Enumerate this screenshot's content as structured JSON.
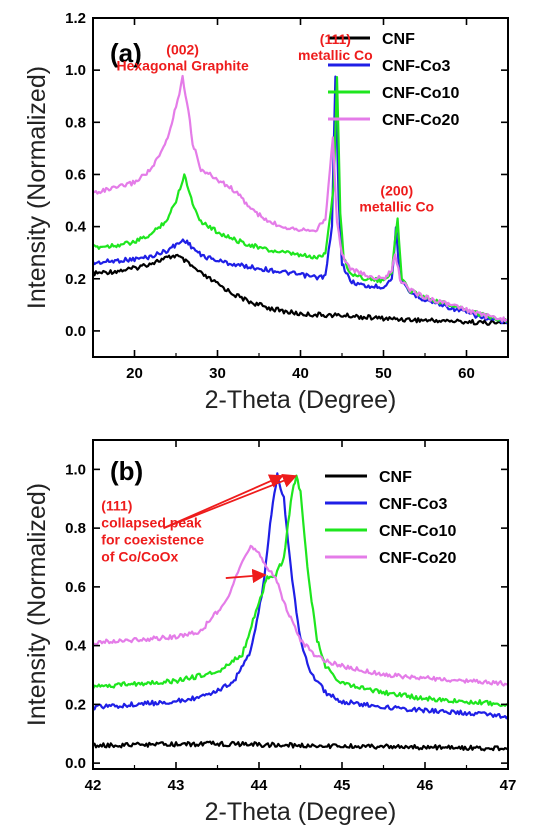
{
  "chart_data": [
    {
      "type": "line",
      "panel_label": "(a)",
      "xlabel": "2-Theta (Degree)",
      "ylabel": "Intensity (Normalized)",
      "xlim": [
        15,
        65
      ],
      "ylim": [
        -0.1,
        1.2
      ],
      "xticks": [
        20,
        30,
        40,
        50,
        60
      ],
      "yticks": [
        0.0,
        0.2,
        0.4,
        0.6,
        0.8,
        1.0,
        1.2
      ],
      "grid": false,
      "legend_position": "top-right",
      "legend": [
        "CNF",
        "CNF-Co3",
        "CNF-Co10",
        "CNF-Co20"
      ],
      "annotations": [
        {
          "lines": [
            "(002)",
            "Hexagonal Graphite"
          ],
          "x": 25.8,
          "y": 1.06
        },
        {
          "lines": [
            "(111)",
            "metallic Co"
          ],
          "x": 44.2,
          "y": 1.1
        },
        {
          "lines": [
            "(200)",
            "metallic Co"
          ],
          "x": 51.6,
          "y": 0.52
        }
      ],
      "series": [
        {
          "name": "CNF",
          "color": "#000000",
          "x": [
            15,
            18,
            20,
            22,
            24,
            25,
            26,
            28,
            30,
            32,
            34,
            36,
            38,
            40,
            42,
            44,
            46,
            48,
            50,
            52,
            54,
            56,
            58,
            60,
            62,
            65
          ],
          "y": [
            0.22,
            0.23,
            0.24,
            0.26,
            0.28,
            0.29,
            0.27,
            0.22,
            0.18,
            0.14,
            0.11,
            0.09,
            0.075,
            0.065,
            0.062,
            0.06,
            0.058,
            0.052,
            0.048,
            0.045,
            0.042,
            0.04,
            0.038,
            0.035,
            0.032,
            0.03
          ]
        },
        {
          "name": "CNF-Co3",
          "color": "#1f1fe6",
          "x": [
            15,
            18,
            20,
            22,
            24,
            25,
            26,
            27,
            28,
            30,
            32,
            34,
            36,
            38,
            40,
            42,
            43,
            43.8,
            44.2,
            44.6,
            45,
            46,
            48,
            50,
            51,
            51.5,
            52,
            53,
            55,
            58,
            60,
            62,
            65
          ],
          "y": [
            0.26,
            0.27,
            0.275,
            0.285,
            0.31,
            0.33,
            0.35,
            0.32,
            0.29,
            0.27,
            0.255,
            0.245,
            0.235,
            0.225,
            0.215,
            0.205,
            0.21,
            0.4,
            0.98,
            0.5,
            0.26,
            0.19,
            0.17,
            0.17,
            0.2,
            0.39,
            0.2,
            0.15,
            0.12,
            0.09,
            0.07,
            0.05,
            0.03
          ]
        },
        {
          "name": "CNF-Co10",
          "color": "#1ee61e",
          "x": [
            15,
            18,
            20,
            22,
            24,
            25,
            26,
            27,
            28,
            30,
            32,
            34,
            36,
            38,
            40,
            42,
            43,
            44,
            44.4,
            44.8,
            45.2,
            46,
            48,
            50,
            51,
            51.7,
            52.2,
            53,
            55,
            58,
            60,
            62,
            65
          ],
          "y": [
            0.32,
            0.33,
            0.34,
            0.37,
            0.43,
            0.5,
            0.6,
            0.49,
            0.42,
            0.38,
            0.35,
            0.33,
            0.31,
            0.3,
            0.29,
            0.28,
            0.3,
            0.55,
            0.98,
            0.45,
            0.28,
            0.22,
            0.2,
            0.19,
            0.23,
            0.43,
            0.2,
            0.16,
            0.13,
            0.1,
            0.08,
            0.06,
            0.04
          ]
        },
        {
          "name": "CNF-Co20",
          "color": "#e47ce8",
          "x": [
            15,
            18,
            20,
            22,
            23,
            24,
            25,
            25.8,
            26.5,
            27,
            28,
            30,
            32,
            34,
            36,
            38,
            40,
            42,
            43,
            43.9,
            44.4,
            45,
            46,
            48,
            50,
            51,
            51.4,
            52,
            53,
            55,
            58,
            60,
            62,
            65
          ],
          "y": [
            0.53,
            0.55,
            0.57,
            0.62,
            0.67,
            0.74,
            0.86,
            0.97,
            0.85,
            0.72,
            0.62,
            0.58,
            0.54,
            0.47,
            0.42,
            0.4,
            0.39,
            0.39,
            0.43,
            0.74,
            0.42,
            0.29,
            0.24,
            0.21,
            0.2,
            0.23,
            0.3,
            0.2,
            0.16,
            0.13,
            0.1,
            0.08,
            0.06,
            0.04
          ]
        }
      ]
    },
    {
      "type": "line",
      "panel_label": "(b)",
      "xlabel": "2-Theta (Degree)",
      "ylabel": "Intensity (Normalized)",
      "xlim": [
        42,
        47
      ],
      "ylim": [
        -0.02,
        1.1
      ],
      "xticks": [
        42,
        43,
        44,
        45,
        46,
        47
      ],
      "yticks": [
        0.0,
        0.2,
        0.4,
        0.6,
        0.8,
        1.0
      ],
      "grid": false,
      "legend_position": "top-right",
      "legend": [
        "CNF",
        "CNF-Co3",
        "CNF-Co10",
        "CNF-Co20"
      ],
      "annotations": [
        {
          "lines": [
            "(111)",
            "collapsed peak",
            "for coexistence",
            "of Co/CoOx"
          ],
          "x": 42.1,
          "y": 0.86
        }
      ],
      "series": [
        {
          "name": "CNF",
          "color": "#000000",
          "x": [
            42,
            42.5,
            43,
            43.5,
            44,
            44.5,
            45,
            45.5,
            46,
            46.5,
            47
          ],
          "y": [
            0.06,
            0.062,
            0.064,
            0.066,
            0.063,
            0.06,
            0.058,
            0.056,
            0.054,
            0.052,
            0.05
          ]
        },
        {
          "name": "CNF-Co3",
          "color": "#1f1fe6",
          "x": [
            42,
            42.5,
            43,
            43.4,
            43.7,
            43.9,
            44.05,
            44.15,
            44.22,
            44.3,
            44.4,
            44.5,
            44.6,
            44.8,
            45,
            45.5,
            46,
            46.5,
            47
          ],
          "y": [
            0.19,
            0.2,
            0.21,
            0.23,
            0.28,
            0.38,
            0.6,
            0.85,
            0.98,
            0.9,
            0.62,
            0.42,
            0.32,
            0.24,
            0.21,
            0.19,
            0.18,
            0.17,
            0.16
          ]
        },
        {
          "name": "CNF-Co10",
          "color": "#1ee61e",
          "x": [
            42,
            42.5,
            43,
            43.5,
            43.8,
            44,
            44.1,
            44.2,
            44.3,
            44.4,
            44.45,
            44.5,
            44.6,
            44.7,
            44.8,
            45,
            45.5,
            46,
            46.5,
            47
          ],
          "y": [
            0.26,
            0.27,
            0.28,
            0.31,
            0.37,
            0.55,
            0.63,
            0.64,
            0.7,
            0.92,
            0.98,
            0.92,
            0.62,
            0.42,
            0.33,
            0.27,
            0.24,
            0.22,
            0.21,
            0.2
          ]
        },
        {
          "name": "CNF-Co20",
          "color": "#e47ce8",
          "x": [
            42,
            42.5,
            43,
            43.3,
            43.6,
            43.8,
            43.9,
            44,
            44.1,
            44.2,
            44.3,
            44.4,
            44.5,
            44.7,
            45,
            45.5,
            46,
            46.5,
            47
          ],
          "y": [
            0.41,
            0.42,
            0.43,
            0.45,
            0.55,
            0.68,
            0.74,
            0.72,
            0.66,
            0.63,
            0.55,
            0.48,
            0.42,
            0.36,
            0.33,
            0.3,
            0.29,
            0.28,
            0.27
          ]
        }
      ]
    }
  ]
}
